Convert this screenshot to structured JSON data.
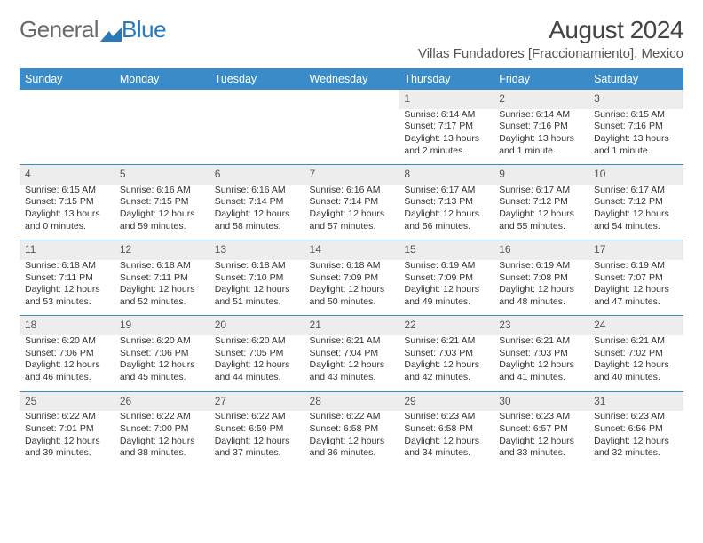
{
  "logo": {
    "text1": "General",
    "text2": "Blue",
    "color_gray": "#6a6a6a",
    "color_blue": "#2a7ab8"
  },
  "header": {
    "month_title": "August 2024",
    "subtitle": "Villas Fundadores [Fraccionamiento], Mexico"
  },
  "style": {
    "header_bg": "#3a8cc9",
    "header_fg": "#ffffff",
    "daynum_bg": "#ededed",
    "border_color": "#3a8cc9",
    "text_color": "#333333",
    "body_font_size": 10.5,
    "th_font_size": 12.5,
    "month_title_font_size": 28,
    "subtitle_font_size": 15
  },
  "day_headers": [
    "Sunday",
    "Monday",
    "Tuesday",
    "Wednesday",
    "Thursday",
    "Friday",
    "Saturday"
  ],
  "weeks": [
    [
      null,
      null,
      null,
      null,
      {
        "n": "1",
        "sunrise": "Sunrise: 6:14 AM",
        "sunset": "Sunset: 7:17 PM",
        "daylight1": "Daylight: 13 hours",
        "daylight2": "and 2 minutes."
      },
      {
        "n": "2",
        "sunrise": "Sunrise: 6:14 AM",
        "sunset": "Sunset: 7:16 PM",
        "daylight1": "Daylight: 13 hours",
        "daylight2": "and 1 minute."
      },
      {
        "n": "3",
        "sunrise": "Sunrise: 6:15 AM",
        "sunset": "Sunset: 7:16 PM",
        "daylight1": "Daylight: 13 hours",
        "daylight2": "and 1 minute."
      }
    ],
    [
      {
        "n": "4",
        "sunrise": "Sunrise: 6:15 AM",
        "sunset": "Sunset: 7:15 PM",
        "daylight1": "Daylight: 13 hours",
        "daylight2": "and 0 minutes."
      },
      {
        "n": "5",
        "sunrise": "Sunrise: 6:16 AM",
        "sunset": "Sunset: 7:15 PM",
        "daylight1": "Daylight: 12 hours",
        "daylight2": "and 59 minutes."
      },
      {
        "n": "6",
        "sunrise": "Sunrise: 6:16 AM",
        "sunset": "Sunset: 7:14 PM",
        "daylight1": "Daylight: 12 hours",
        "daylight2": "and 58 minutes."
      },
      {
        "n": "7",
        "sunrise": "Sunrise: 6:16 AM",
        "sunset": "Sunset: 7:14 PM",
        "daylight1": "Daylight: 12 hours",
        "daylight2": "and 57 minutes."
      },
      {
        "n": "8",
        "sunrise": "Sunrise: 6:17 AM",
        "sunset": "Sunset: 7:13 PM",
        "daylight1": "Daylight: 12 hours",
        "daylight2": "and 56 minutes."
      },
      {
        "n": "9",
        "sunrise": "Sunrise: 6:17 AM",
        "sunset": "Sunset: 7:12 PM",
        "daylight1": "Daylight: 12 hours",
        "daylight2": "and 55 minutes."
      },
      {
        "n": "10",
        "sunrise": "Sunrise: 6:17 AM",
        "sunset": "Sunset: 7:12 PM",
        "daylight1": "Daylight: 12 hours",
        "daylight2": "and 54 minutes."
      }
    ],
    [
      {
        "n": "11",
        "sunrise": "Sunrise: 6:18 AM",
        "sunset": "Sunset: 7:11 PM",
        "daylight1": "Daylight: 12 hours",
        "daylight2": "and 53 minutes."
      },
      {
        "n": "12",
        "sunrise": "Sunrise: 6:18 AM",
        "sunset": "Sunset: 7:11 PM",
        "daylight1": "Daylight: 12 hours",
        "daylight2": "and 52 minutes."
      },
      {
        "n": "13",
        "sunrise": "Sunrise: 6:18 AM",
        "sunset": "Sunset: 7:10 PM",
        "daylight1": "Daylight: 12 hours",
        "daylight2": "and 51 minutes."
      },
      {
        "n": "14",
        "sunrise": "Sunrise: 6:18 AM",
        "sunset": "Sunset: 7:09 PM",
        "daylight1": "Daylight: 12 hours",
        "daylight2": "and 50 minutes."
      },
      {
        "n": "15",
        "sunrise": "Sunrise: 6:19 AM",
        "sunset": "Sunset: 7:09 PM",
        "daylight1": "Daylight: 12 hours",
        "daylight2": "and 49 minutes."
      },
      {
        "n": "16",
        "sunrise": "Sunrise: 6:19 AM",
        "sunset": "Sunset: 7:08 PM",
        "daylight1": "Daylight: 12 hours",
        "daylight2": "and 48 minutes."
      },
      {
        "n": "17",
        "sunrise": "Sunrise: 6:19 AM",
        "sunset": "Sunset: 7:07 PM",
        "daylight1": "Daylight: 12 hours",
        "daylight2": "and 47 minutes."
      }
    ],
    [
      {
        "n": "18",
        "sunrise": "Sunrise: 6:20 AM",
        "sunset": "Sunset: 7:06 PM",
        "daylight1": "Daylight: 12 hours",
        "daylight2": "and 46 minutes."
      },
      {
        "n": "19",
        "sunrise": "Sunrise: 6:20 AM",
        "sunset": "Sunset: 7:06 PM",
        "daylight1": "Daylight: 12 hours",
        "daylight2": "and 45 minutes."
      },
      {
        "n": "20",
        "sunrise": "Sunrise: 6:20 AM",
        "sunset": "Sunset: 7:05 PM",
        "daylight1": "Daylight: 12 hours",
        "daylight2": "and 44 minutes."
      },
      {
        "n": "21",
        "sunrise": "Sunrise: 6:21 AM",
        "sunset": "Sunset: 7:04 PM",
        "daylight1": "Daylight: 12 hours",
        "daylight2": "and 43 minutes."
      },
      {
        "n": "22",
        "sunrise": "Sunrise: 6:21 AM",
        "sunset": "Sunset: 7:03 PM",
        "daylight1": "Daylight: 12 hours",
        "daylight2": "and 42 minutes."
      },
      {
        "n": "23",
        "sunrise": "Sunrise: 6:21 AM",
        "sunset": "Sunset: 7:03 PM",
        "daylight1": "Daylight: 12 hours",
        "daylight2": "and 41 minutes."
      },
      {
        "n": "24",
        "sunrise": "Sunrise: 6:21 AM",
        "sunset": "Sunset: 7:02 PM",
        "daylight1": "Daylight: 12 hours",
        "daylight2": "and 40 minutes."
      }
    ],
    [
      {
        "n": "25",
        "sunrise": "Sunrise: 6:22 AM",
        "sunset": "Sunset: 7:01 PM",
        "daylight1": "Daylight: 12 hours",
        "daylight2": "and 39 minutes."
      },
      {
        "n": "26",
        "sunrise": "Sunrise: 6:22 AM",
        "sunset": "Sunset: 7:00 PM",
        "daylight1": "Daylight: 12 hours",
        "daylight2": "and 38 minutes."
      },
      {
        "n": "27",
        "sunrise": "Sunrise: 6:22 AM",
        "sunset": "Sunset: 6:59 PM",
        "daylight1": "Daylight: 12 hours",
        "daylight2": "and 37 minutes."
      },
      {
        "n": "28",
        "sunrise": "Sunrise: 6:22 AM",
        "sunset": "Sunset: 6:58 PM",
        "daylight1": "Daylight: 12 hours",
        "daylight2": "and 36 minutes."
      },
      {
        "n": "29",
        "sunrise": "Sunrise: 6:23 AM",
        "sunset": "Sunset: 6:58 PM",
        "daylight1": "Daylight: 12 hours",
        "daylight2": "and 34 minutes."
      },
      {
        "n": "30",
        "sunrise": "Sunrise: 6:23 AM",
        "sunset": "Sunset: 6:57 PM",
        "daylight1": "Daylight: 12 hours",
        "daylight2": "and 33 minutes."
      },
      {
        "n": "31",
        "sunrise": "Sunrise: 6:23 AM",
        "sunset": "Sunset: 6:56 PM",
        "daylight1": "Daylight: 12 hours",
        "daylight2": "and 32 minutes."
      }
    ]
  ]
}
